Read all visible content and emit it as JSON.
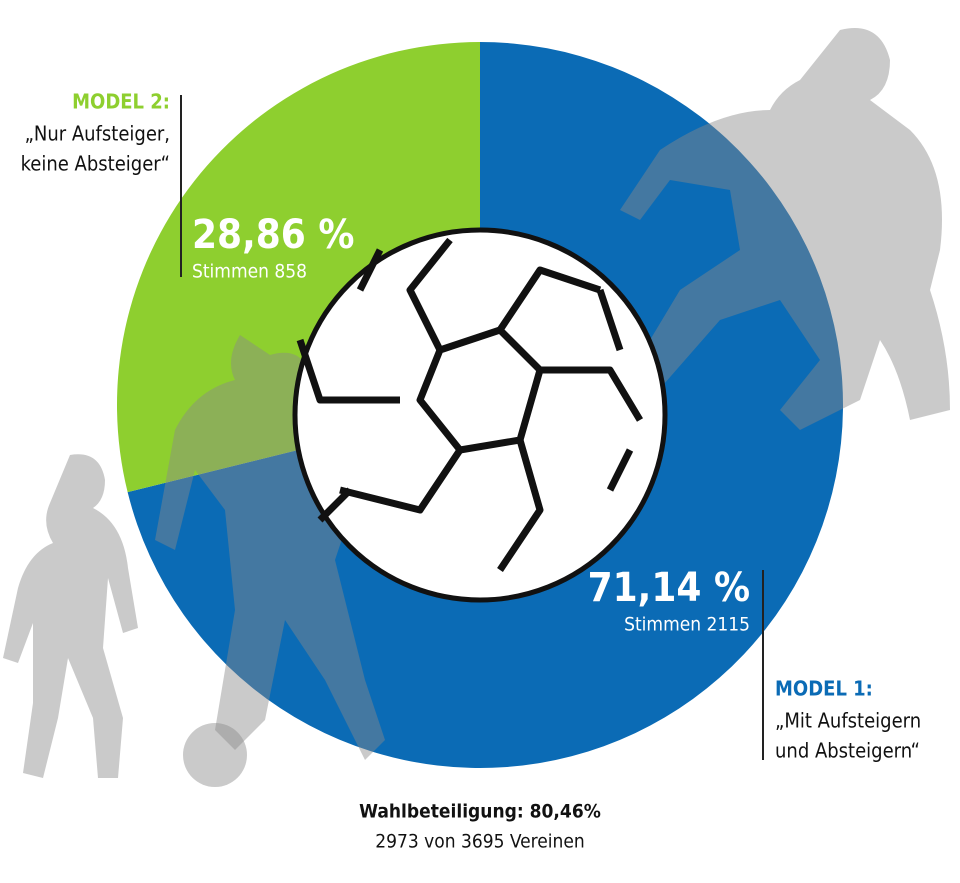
{
  "chart_data": {
    "type": "pie",
    "donut": true,
    "categories": [
      "MODEL 1:",
      "MODEL 2:"
    ],
    "descriptions": [
      [
        "„Mit Aufsteigern",
        "und Absteigern“"
      ],
      [
        "„Nur Aufsteiger,",
        "keine Absteiger“"
      ]
    ],
    "values": [
      71.14,
      28.86
    ],
    "value_labels": [
      "71,14 %",
      "28,86 %"
    ],
    "vote_labels": [
      "Stimmen 2115",
      "Stimmen 858"
    ],
    "colors": [
      "#0b6bb5",
      "#8ecf2f"
    ],
    "footer": {
      "turnout": "Wahlbeteiligung: 80,46%",
      "detail": "2973 von 3695 Vereinen"
    }
  }
}
